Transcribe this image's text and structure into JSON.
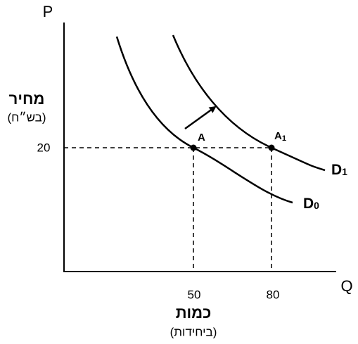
{
  "axes": {
    "y_label": "P",
    "x_label": "Q",
    "y_title": "מחיר",
    "y_subtitle": "(בש״ח)",
    "x_title": "כמות",
    "x_subtitle": "(ביחידות)"
  },
  "ticks": {
    "y": [
      "20"
    ],
    "x": [
      "50",
      "80"
    ]
  },
  "points": [
    {
      "label": "A"
    },
    {
      "label": "A",
      "sub": "1"
    }
  ],
  "curves": [
    {
      "label": "D",
      "sub": "0"
    },
    {
      "label": "D",
      "sub": "1"
    }
  ]
}
